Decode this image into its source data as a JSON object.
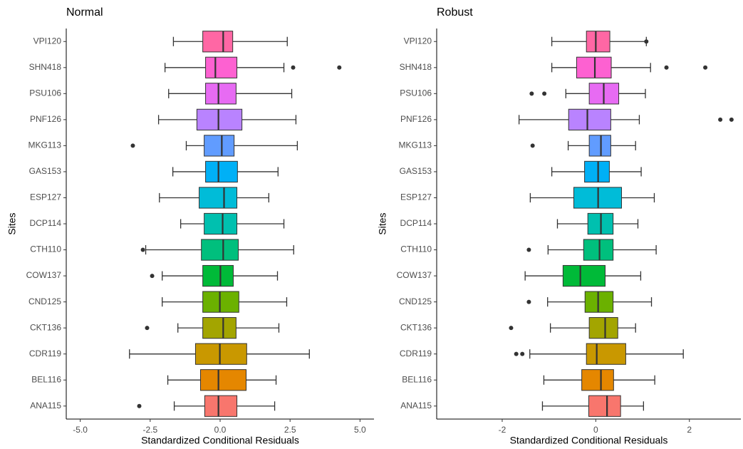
{
  "chart_data": [
    {
      "type": "box",
      "title": "Normal",
      "xlabel": "Standardized Conditional Residuals",
      "ylabel": "Sites",
      "categories": [
        "ANA115",
        "BEL116",
        "CDR119",
        "CKT136",
        "CND125",
        "COW137",
        "CTH110",
        "DCP114",
        "ESP127",
        "GAS153",
        "MKG113",
        "PNF126",
        "PSU106",
        "SHN418",
        "VPI120"
      ],
      "colors": [
        "#F8766D",
        "#E58700",
        "#C99800",
        "#A3A500",
        "#6BB100",
        "#00BA38",
        "#00BF7D",
        "#00C0AF",
        "#00BCD8",
        "#00B0F6",
        "#619CFF",
        "#B983FF",
        "#E76BF3",
        "#FD61D1",
        "#FF67A4"
      ],
      "boxes": [
        {
          "low": -1.64,
          "q1": -0.55,
          "median": -0.06,
          "q3": 0.6,
          "high": 1.95,
          "outliers": [
            -2.89
          ]
        },
        {
          "low": -1.87,
          "q1": -0.7,
          "median": -0.06,
          "q3": 0.93,
          "high": 2.0
        },
        {
          "low": -3.24,
          "q1": -0.88,
          "median": -0.01,
          "q3": 0.95,
          "high": 3.19
        },
        {
          "low": -1.51,
          "q1": -0.62,
          "median": 0.11,
          "q3": 0.57,
          "high": 2.1,
          "outliers": [
            -2.61
          ]
        },
        {
          "low": -2.07,
          "q1": -0.62,
          "median": -0.01,
          "q3": 0.67,
          "high": 2.38
        },
        {
          "low": -2.07,
          "q1": -0.62,
          "median": 0.01,
          "q3": 0.47,
          "high": 2.05,
          "outliers": [
            -2.43
          ]
        },
        {
          "low": -2.66,
          "q1": -0.67,
          "median": 0.11,
          "q3": 0.65,
          "high": 2.63,
          "outliers": [
            -2.76
          ]
        },
        {
          "low": -1.41,
          "q1": -0.57,
          "median": 0.09,
          "q3": 0.6,
          "high": 2.28
        },
        {
          "low": -2.17,
          "q1": -0.75,
          "median": 0.14,
          "q3": 0.6,
          "high": 1.74
        },
        {
          "low": -1.69,
          "q1": -0.52,
          "median": -0.06,
          "q3": 0.62,
          "high": 2.07
        },
        {
          "low": -1.21,
          "q1": -0.57,
          "median": 0.06,
          "q3": 0.5,
          "high": 2.76,
          "outliers": [
            -3.12
          ]
        },
        {
          "low": -2.2,
          "q1": -0.83,
          "median": -0.06,
          "q3": 0.78,
          "high": 2.71
        },
        {
          "low": -1.84,
          "q1": -0.52,
          "median": -0.06,
          "q3": 0.57,
          "high": 2.56
        },
        {
          "low": -1.97,
          "q1": -0.52,
          "median": -0.17,
          "q3": 0.6,
          "high": 2.28,
          "outliers": [
            2.61,
            4.26
          ]
        },
        {
          "low": -1.67,
          "q1": -0.62,
          "median": 0.11,
          "q3": 0.45,
          "high": 2.4
        }
      ],
      "xlim": [
        -5.5,
        5.5
      ],
      "xticks": [
        {
          "value": -5,
          "label": "-5.0"
        },
        -2.5,
        {
          "value": 0,
          "label": "0.0"
        },
        2.5,
        {
          "value": 5,
          "label": "5.0"
        }
      ]
    },
    {
      "type": "box",
      "title": "Robust",
      "xlabel": "Standardized Conditional Residuals",
      "ylabel": "Sites",
      "categories": [
        "ANA115",
        "BEL116",
        "CDR119",
        "CKT136",
        "CND125",
        "COW137",
        "CTH110",
        "DCP114",
        "ESP127",
        "GAS153",
        "MKG113",
        "PNF126",
        "PSU106",
        "SHN418",
        "VPI120"
      ],
      "colors": [
        "#F8766D",
        "#E58700",
        "#C99800",
        "#A3A500",
        "#6BB100",
        "#00BA38",
        "#00BF7D",
        "#00C0AF",
        "#00BCD8",
        "#00B0F6",
        "#619CFF",
        "#B983FF",
        "#E76BF3",
        "#FD61D1",
        "#FF67A4"
      ],
      "boxes": [
        {
          "low": -1.14,
          "q1": -0.15,
          "median": 0.24,
          "q3": 0.53,
          "high": 1.02
        },
        {
          "low": -1.11,
          "q1": -0.3,
          "median": 0.11,
          "q3": 0.38,
          "high": 1.26
        },
        {
          "low": -1.41,
          "q1": -0.2,
          "median": 0.02,
          "q3": 0.64,
          "high": 1.87,
          "outliers": [
            -1.7,
            -1.57
          ]
        },
        {
          "low": -0.97,
          "q1": -0.14,
          "median": 0.2,
          "q3": 0.47,
          "high": 0.85,
          "outliers": [
            -1.81
          ]
        },
        {
          "low": -1.03,
          "q1": -0.23,
          "median": 0.05,
          "q3": 0.37,
          "high": 1.19,
          "outliers": [
            -1.43
          ]
        },
        {
          "low": -1.51,
          "q1": -0.7,
          "median": -0.33,
          "q3": 0.2,
          "high": 0.96
        },
        {
          "low": -1.02,
          "q1": -0.26,
          "median": 0.08,
          "q3": 0.37,
          "high": 1.29,
          "outliers": [
            -1.43
          ]
        },
        {
          "low": -0.82,
          "q1": -0.17,
          "median": 0.11,
          "q3": 0.37,
          "high": 0.9
        },
        {
          "low": -1.4,
          "q1": -0.47,
          "median": 0.05,
          "q3": 0.55,
          "high": 1.25
        },
        {
          "low": -0.94,
          "q1": -0.24,
          "median": 0.05,
          "q3": 0.29,
          "high": 0.97
        },
        {
          "low": -0.59,
          "q1": -0.14,
          "median": 0.11,
          "q3": 0.32,
          "high": 0.85,
          "outliers": [
            -1.35
          ]
        },
        {
          "low": -1.64,
          "q1": -0.58,
          "median": -0.18,
          "q3": 0.32,
          "high": 0.93,
          "outliers": [
            2.66,
            2.9
          ]
        },
        {
          "low": -0.64,
          "q1": -0.14,
          "median": 0.17,
          "q3": 0.49,
          "high": 1.06,
          "outliers": [
            -1.37,
            -1.1
          ]
        },
        {
          "low": -0.94,
          "q1": -0.41,
          "median": -0.02,
          "q3": 0.33,
          "high": 1.17,
          "outliers": [
            1.51,
            2.34
          ]
        },
        {
          "low": -0.94,
          "q1": -0.2,
          "median": 0.0,
          "q3": 0.3,
          "high": 1.08,
          "outliers": [
            1.08
          ]
        }
      ],
      "xlim": [
        -3.4,
        3.1
      ],
      "xticks": [
        -2,
        0,
        2
      ]
    }
  ]
}
